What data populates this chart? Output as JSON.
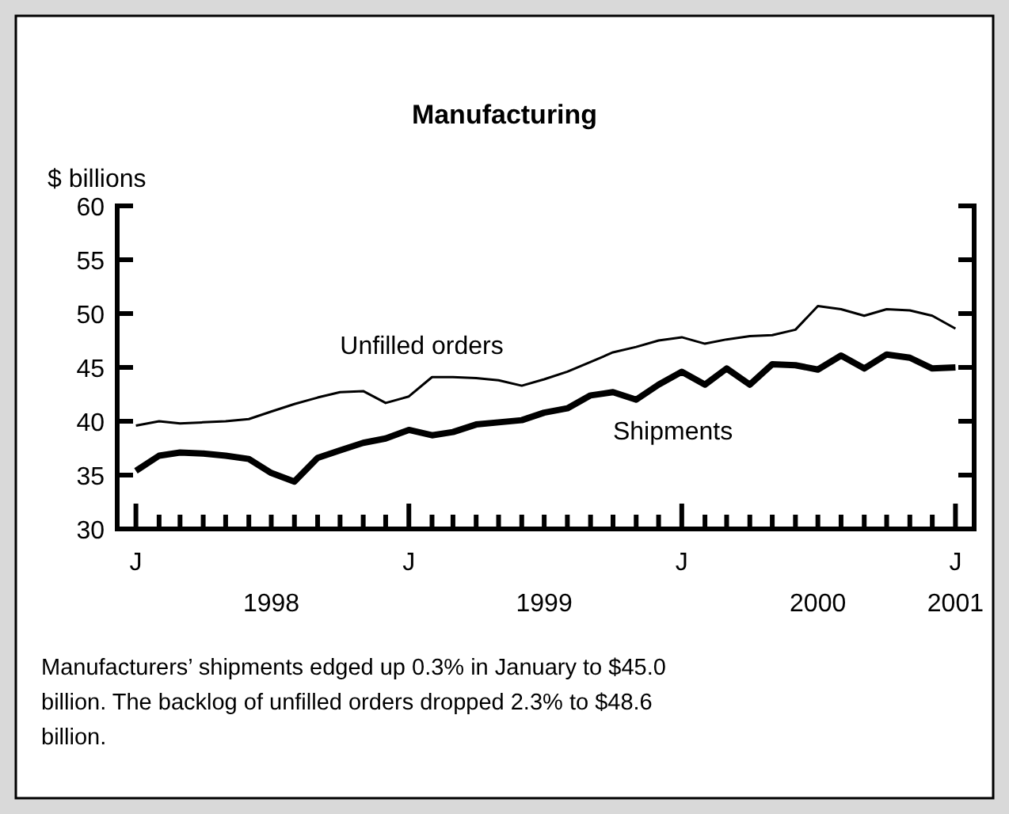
{
  "chart_data": {
    "type": "line",
    "title": "Manufacturing",
    "ylabel": "$ billions",
    "x": [
      "1998-01",
      "1998-02",
      "1998-03",
      "1998-04",
      "1998-05",
      "1998-06",
      "1998-07",
      "1998-08",
      "1998-09",
      "1998-10",
      "1998-11",
      "1998-12",
      "1999-01",
      "1999-02",
      "1999-03",
      "1999-04",
      "1999-05",
      "1999-06",
      "1999-07",
      "1999-08",
      "1999-09",
      "1999-10",
      "1999-11",
      "1999-12",
      "2000-01",
      "2000-02",
      "2000-03",
      "2000-04",
      "2000-05",
      "2000-06",
      "2000-07",
      "2000-08",
      "2000-09",
      "2000-10",
      "2000-11",
      "2000-12",
      "2001-01"
    ],
    "series": [
      {
        "name": "Unfilled orders",
        "color": "#000000",
        "values": [
          39.6,
          40.0,
          39.8,
          39.9,
          40.0,
          40.2,
          40.9,
          41.6,
          42.2,
          42.7,
          42.8,
          41.7,
          42.3,
          44.1,
          44.1,
          44.0,
          43.8,
          43.3,
          43.9,
          44.6,
          45.5,
          46.4,
          46.9,
          47.5,
          47.8,
          47.2,
          47.6,
          47.9,
          48.0,
          48.5,
          50.7,
          50.4,
          49.8,
          50.4,
          50.3,
          49.8,
          48.6
        ]
      },
      {
        "name": "Shipments",
        "color": "#000000",
        "values": [
          35.4,
          36.8,
          37.1,
          37.0,
          36.8,
          36.5,
          35.2,
          34.4,
          36.6,
          37.3,
          38.0,
          38.4,
          39.2,
          38.7,
          39.0,
          39.7,
          39.9,
          40.1,
          40.8,
          41.2,
          42.4,
          42.7,
          42.0,
          43.4,
          44.6,
          43.4,
          44.9,
          43.4,
          45.3,
          45.2,
          44.8,
          46.1,
          44.9,
          46.2,
          45.9,
          44.9,
          45.0
        ]
      }
    ],
    "xlim": [
      "1997-12-07",
      "2001-01-26"
    ],
    "xticks": [
      {
        "value": "1998-01",
        "label": null
      },
      {
        "value": "1998-02",
        "label": null
      },
      {
        "value": "1998-03",
        "label": null
      },
      {
        "value": "1998-04",
        "label": null
      },
      {
        "value": "1998-05",
        "label": null
      },
      {
        "value": "1998-06",
        "label": null
      },
      {
        "value": "1998-07",
        "label": "1998"
      },
      {
        "value": "1998-08",
        "label": null
      },
      {
        "value": "1998-09",
        "label": null
      },
      {
        "value": "1998-10",
        "label": null
      },
      {
        "value": "1998-11",
        "label": null
      },
      {
        "value": "1998-12",
        "label": null
      },
      {
        "value": "1999-01",
        "label": null
      },
      {
        "value": "1999-02",
        "label": null
      },
      {
        "value": "1999-03",
        "label": null
      },
      {
        "value": "1999-04",
        "label": null
      },
      {
        "value": "1999-05",
        "label": null
      },
      {
        "value": "1999-06",
        "label": null
      },
      {
        "value": "1999-07",
        "label": "1999"
      },
      {
        "value": "1999-08",
        "label": null
      },
      {
        "value": "1999-09",
        "label": null
      },
      {
        "value": "1999-10",
        "label": null
      },
      {
        "value": "1999-11",
        "label": null
      },
      {
        "value": "1999-12",
        "label": null
      },
      {
        "value": "2000-01",
        "label": null
      },
      {
        "value": "2000-02",
        "label": null
      },
      {
        "value": "2000-03",
        "label": null
      },
      {
        "value": "2000-04",
        "label": null
      },
      {
        "value": "2000-05",
        "label": null
      },
      {
        "value": "2000-06",
        "label": null
      },
      {
        "value": "2000-07",
        "label": "2000"
      },
      {
        "value": "2000-08",
        "label": null
      },
      {
        "value": "2000-09",
        "label": null
      },
      {
        "value": "2000-10",
        "label": null
      },
      {
        "value": "2000-11",
        "label": null
      },
      {
        "value": "2000-12",
        "label": null
      },
      {
        "value": "2001-01",
        "label": "2001"
      }
    ],
    "ylim": [
      30,
      60
    ],
    "yticks": [
      30,
      35,
      40,
      45,
      50,
      55,
      60
    ],
    "grid": false,
    "annotations": [
      {
        "text": "J",
        "x": "1998-01"
      },
      {
        "text": "J",
        "x": "1999-01"
      },
      {
        "text": "J",
        "x": "2000-01"
      },
      {
        "text": "J",
        "x": "2001-01"
      },
      "Manufacturers’ shipments edged up 0.3% in January to $45.0 billion. The backlog of unfilled orders dropped 2.3% to $48.6 billion."
    ]
  }
}
